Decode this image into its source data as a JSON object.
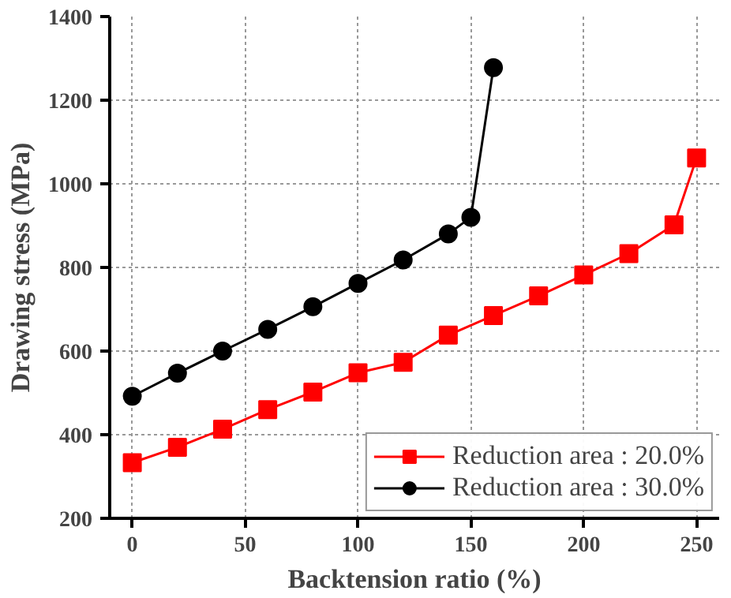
{
  "chart_data": {
    "type": "line",
    "xlabel": "Backtension ratio (%)",
    "ylabel": "Drawing stress (MPa)",
    "xlim": [
      -10,
      260
    ],
    "ylim": [
      200,
      1400
    ],
    "xticks": [
      0,
      50,
      100,
      150,
      200,
      250
    ],
    "yticks": [
      200,
      400,
      600,
      800,
      1000,
      1200,
      1400
    ],
    "grid": true,
    "legend": "bottom right",
    "line_style": "solid",
    "series": [
      {
        "name": "Reduction area : 20.0%",
        "color": "#ff0000",
        "marker": "square",
        "x": [
          0,
          20,
          40,
          60,
          80,
          100,
          120,
          140,
          160,
          180,
          200,
          220,
          240,
          250
        ],
        "values": [
          333,
          370,
          413,
          460,
          502,
          548,
          573,
          638,
          685,
          732,
          782,
          833,
          902,
          1062
        ]
      },
      {
        "name": "Reduction area : 30.0%",
        "color": "#000000",
        "marker": "circle",
        "x": [
          0,
          20,
          40,
          60,
          80,
          100,
          120,
          140,
          150,
          160
        ],
        "values": [
          492,
          547,
          600,
          652,
          706,
          762,
          818,
          880,
          920,
          1278
        ]
      }
    ]
  }
}
